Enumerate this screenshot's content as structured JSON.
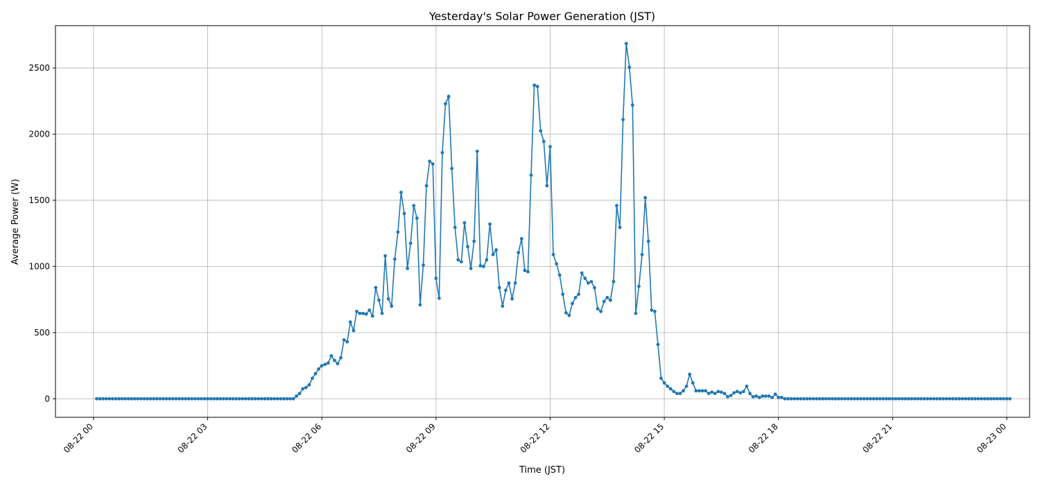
{
  "chart_data": {
    "type": "line",
    "title": "Yesterday's Solar Power Generation (JST)",
    "xlabel": "Time (JST)",
    "ylabel": "Average Power (W)",
    "grid": true,
    "marker": "circle",
    "series_color": "#1f77b4",
    "x_unit": "hours since 08-22 00:00",
    "x_ticks": [
      {
        "value": 0,
        "label": "08-22 00"
      },
      {
        "value": 3,
        "label": "08-22 03"
      },
      {
        "value": 6,
        "label": "08-22 06"
      },
      {
        "value": 9,
        "label": "08-22 09"
      },
      {
        "value": 12,
        "label": "08-22 12"
      },
      {
        "value": 15,
        "label": "08-22 15"
      },
      {
        "value": 18,
        "label": "08-22 18"
      },
      {
        "value": 21,
        "label": "08-22 21"
      },
      {
        "value": 24,
        "label": "08-23 00"
      }
    ],
    "y_ticks": [
      0,
      500,
      1000,
      1500,
      2000,
      2500
    ],
    "xlim": [
      -1,
      24.6
    ],
    "ylim": [
      -140,
      2820
    ],
    "series": [
      {
        "name": "Average Power",
        "start_hour": 0.08333,
        "step_hours": 0.08333,
        "values": [
          0,
          0,
          0,
          0,
          0,
          0,
          0,
          0,
          0,
          0,
          0,
          0,
          0,
          0,
          0,
          0,
          0,
          0,
          0,
          0,
          0,
          0,
          0,
          0,
          0,
          0,
          0,
          0,
          0,
          0,
          0,
          0,
          0,
          0,
          0,
          0,
          0,
          0,
          0,
          0,
          0,
          0,
          0,
          0,
          0,
          0,
          0,
          0,
          0,
          0,
          0,
          0,
          0,
          0,
          0,
          0,
          0,
          0,
          0,
          0,
          0,
          0,
          0,
          20,
          40,
          75,
          85,
          105,
          155,
          190,
          225,
          250,
          260,
          270,
          325,
          290,
          265,
          310,
          445,
          430,
          580,
          515,
          660,
          645,
          645,
          640,
          670,
          625,
          840,
          745,
          645,
          1080,
          755,
          700,
          1055,
          1260,
          1560,
          1400,
          985,
          1175,
          1460,
          1365,
          710,
          1010,
          1610,
          1795,
          1775,
          910,
          760,
          1860,
          2230,
          2285,
          1740,
          1295,
          1050,
          1035,
          1330,
          1150,
          985,
          1190,
          1870,
          1005,
          1000,
          1050,
          1320,
          1090,
          1125,
          840,
          700,
          820,
          875,
          755,
          875,
          1105,
          1210,
          970,
          960,
          1690,
          2370,
          2360,
          2025,
          1945,
          1610,
          1905,
          1090,
          1020,
          935,
          790,
          650,
          630,
          720,
          765,
          790,
          950,
          910,
          875,
          885,
          840,
          680,
          660,
          735,
          765,
          745,
          885,
          1460,
          1295,
          2110,
          2685,
          2505,
          2220,
          645,
          850,
          1090,
          1520,
          1190,
          670,
          660,
          410,
          155,
          120,
          95,
          75,
          55,
          40,
          40,
          60,
          95,
          185,
          120,
          60,
          60,
          60,
          60,
          40,
          50,
          40,
          55,
          50,
          40,
          15,
          25,
          45,
          55,
          45,
          55,
          95,
          40,
          15,
          20,
          10,
          20,
          20,
          20,
          10,
          35,
          10,
          10,
          0,
          0,
          0,
          0,
          0,
          0,
          0,
          0,
          0,
          0,
          0,
          0,
          0,
          0,
          0,
          0,
          0,
          0,
          0,
          0,
          0,
          0,
          0,
          0,
          0,
          0,
          0,
          0,
          0,
          0,
          0,
          0,
          0,
          0,
          0,
          0,
          0,
          0,
          0,
          0,
          0,
          0,
          0,
          0,
          0,
          0,
          0,
          0,
          0,
          0,
          0,
          0,
          0,
          0,
          0,
          0,
          0,
          0,
          0,
          0,
          0,
          0,
          0,
          0,
          0,
          0,
          0,
          0,
          0,
          0,
          0,
          0
        ]
      }
    ]
  }
}
